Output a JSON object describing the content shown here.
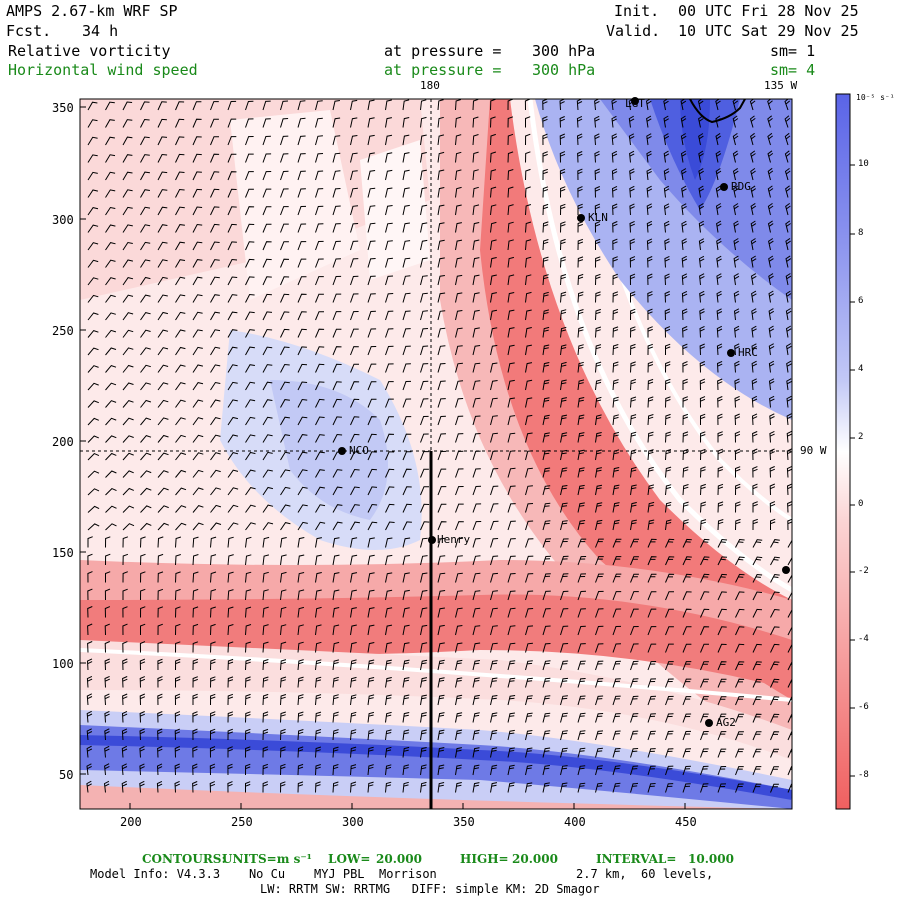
{
  "header": {
    "model_title": "AMPS 2.67-km WRF SP",
    "forecast_label": "Fcst.",
    "forecast_value": "34 h",
    "init_label": "Init.",
    "init_value": "00 UTC Fri 28 Nov 25",
    "valid_label": "Valid.",
    "valid_value": "10 UTC Sat 29 Nov 25"
  },
  "fields": [
    {
      "name": "Relative vorticity",
      "level_label": "at pressure =",
      "level_value": "300 hPa",
      "smoothing": "sm= 1",
      "color": "#000000"
    },
    {
      "name": "Horizontal wind speed",
      "level_label": "at pressure =",
      "level_value": "300 hPa",
      "smoothing": "sm= 4",
      "color": "#1a8a1a"
    }
  ],
  "map": {
    "longitude_labels": [
      "180",
      "135 W"
    ],
    "latitude_label": "90 W",
    "x_ticks": [
      "200",
      "250",
      "300",
      "350",
      "400",
      "450"
    ],
    "y_ticks": [
      "350",
      "300",
      "250",
      "200",
      "150",
      "100",
      "50"
    ],
    "stations": [
      "LGT",
      "RDG",
      "KLN",
      "HRC",
      "NCO",
      "Henry",
      "AG2"
    ],
    "colors": {
      "positive": "#3c4fe0",
      "negative": "#f05a5a",
      "neutral": "#ffffff"
    }
  },
  "colorbar": {
    "unit": "10⁻⁵ s⁻¹",
    "labels": [
      "10",
      "8",
      "6",
      "4",
      "2",
      "0",
      "-2",
      "-4",
      "-6",
      "-8"
    ]
  },
  "footer": {
    "contours_label": "CONTOURS:",
    "units_label": "UNITS=m s⁻¹",
    "low_label": "LOW=",
    "low_value": "20.000",
    "high_label": "HIGH=",
    "high_value": "20.000",
    "interval_label": "INTERVAL=",
    "interval_value": "10.000",
    "model_info": "Model Info: V4.3.3    No Cu    MYJ PBL  Morrison",
    "resolution": "2.7 km,  60 levels,",
    "physics": "LW: RRTM SW: RRTMG   DIFF: simple KM: 2D Smagor"
  }
}
